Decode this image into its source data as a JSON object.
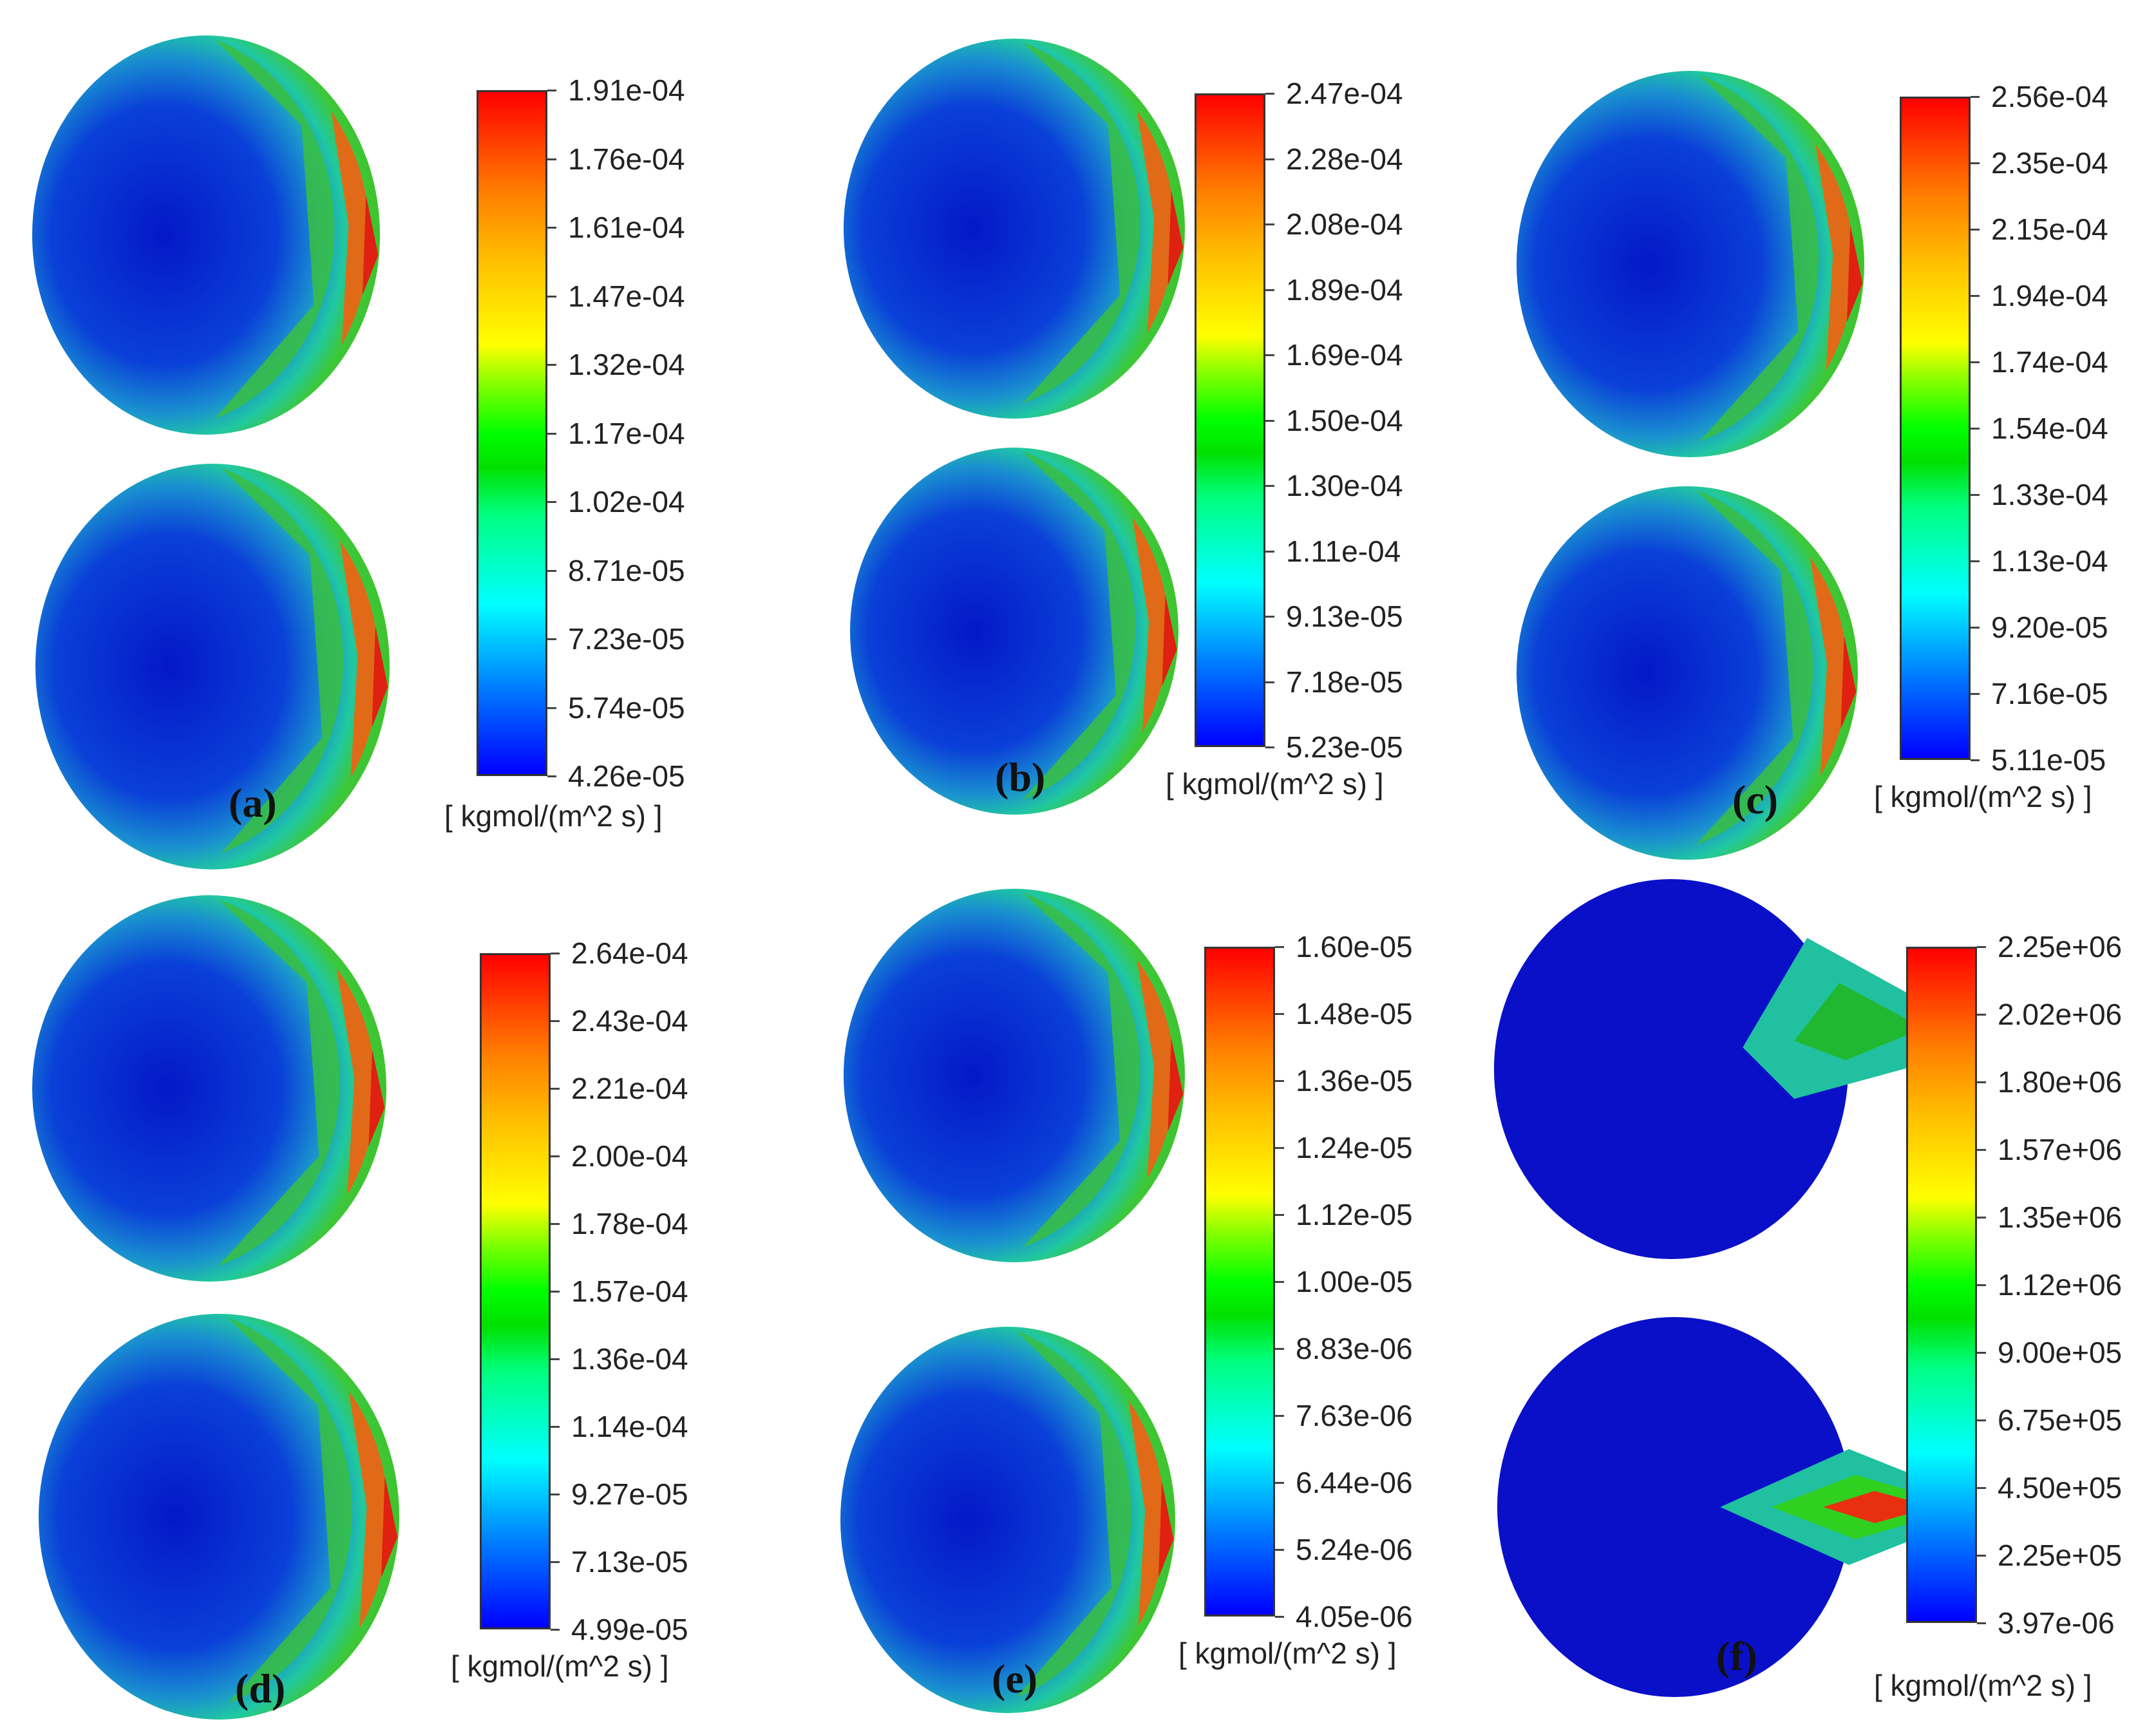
{
  "unit_label": "[ kgmol/(m^2 s) ]",
  "colors": {
    "low": "#0000ff",
    "mid": "#00ff00",
    "high": "#ff0000"
  },
  "panels": [
    {
      "label": "(a)",
      "ticks": [
        "1.91e-04",
        "1.76e-04",
        "1.61e-04",
        "1.47e-04",
        "1.32e-04",
        "1.17e-04",
        "1.02e-04",
        "8.71e-05",
        "7.23e-05",
        "5.74e-05",
        "4.26e-05"
      ]
    },
    {
      "label": "(b)",
      "ticks": [
        "2.47e-04",
        "2.28e-04",
        "2.08e-04",
        "1.89e-04",
        "1.69e-04",
        "1.50e-04",
        "1.30e-04",
        "1.11e-04",
        "9.13e-05",
        "7.18e-05",
        "5.23e-05"
      ]
    },
    {
      "label": "(c)",
      "ticks": [
        "2.56e-04",
        "2.35e-04",
        "2.15e-04",
        "1.94e-04",
        "1.74e-04",
        "1.54e-04",
        "1.33e-04",
        "1.13e-04",
        "9.20e-05",
        "7.16e-05",
        "5.11e-05"
      ]
    },
    {
      "label": "(d)",
      "ticks": [
        "2.64e-04",
        "2.43e-04",
        "2.21e-04",
        "2.00e-04",
        "1.78e-04",
        "1.57e-04",
        "1.36e-04",
        "1.14e-04",
        "9.27e-05",
        "7.13e-05",
        "4.99e-05"
      ]
    },
    {
      "label": "(e)",
      "ticks": [
        "1.60e-05",
        "1.48e-05",
        "1.36e-05",
        "1.24e-05",
        "1.12e-05",
        "1.00e-05",
        "8.83e-06",
        "7.63e-06",
        "6.44e-06",
        "5.24e-06",
        "4.05e-06"
      ]
    },
    {
      "label": "(f)",
      "ticks": [
        "2.25e+06",
        "2.02e+06",
        "1.80e+06",
        "1.57e+06",
        "1.35e+06",
        "1.12e+06",
        "9.00e+05",
        "6.75e+05",
        "4.50e+05",
        "2.25e+05",
        "3.97e-06"
      ]
    }
  ]
}
